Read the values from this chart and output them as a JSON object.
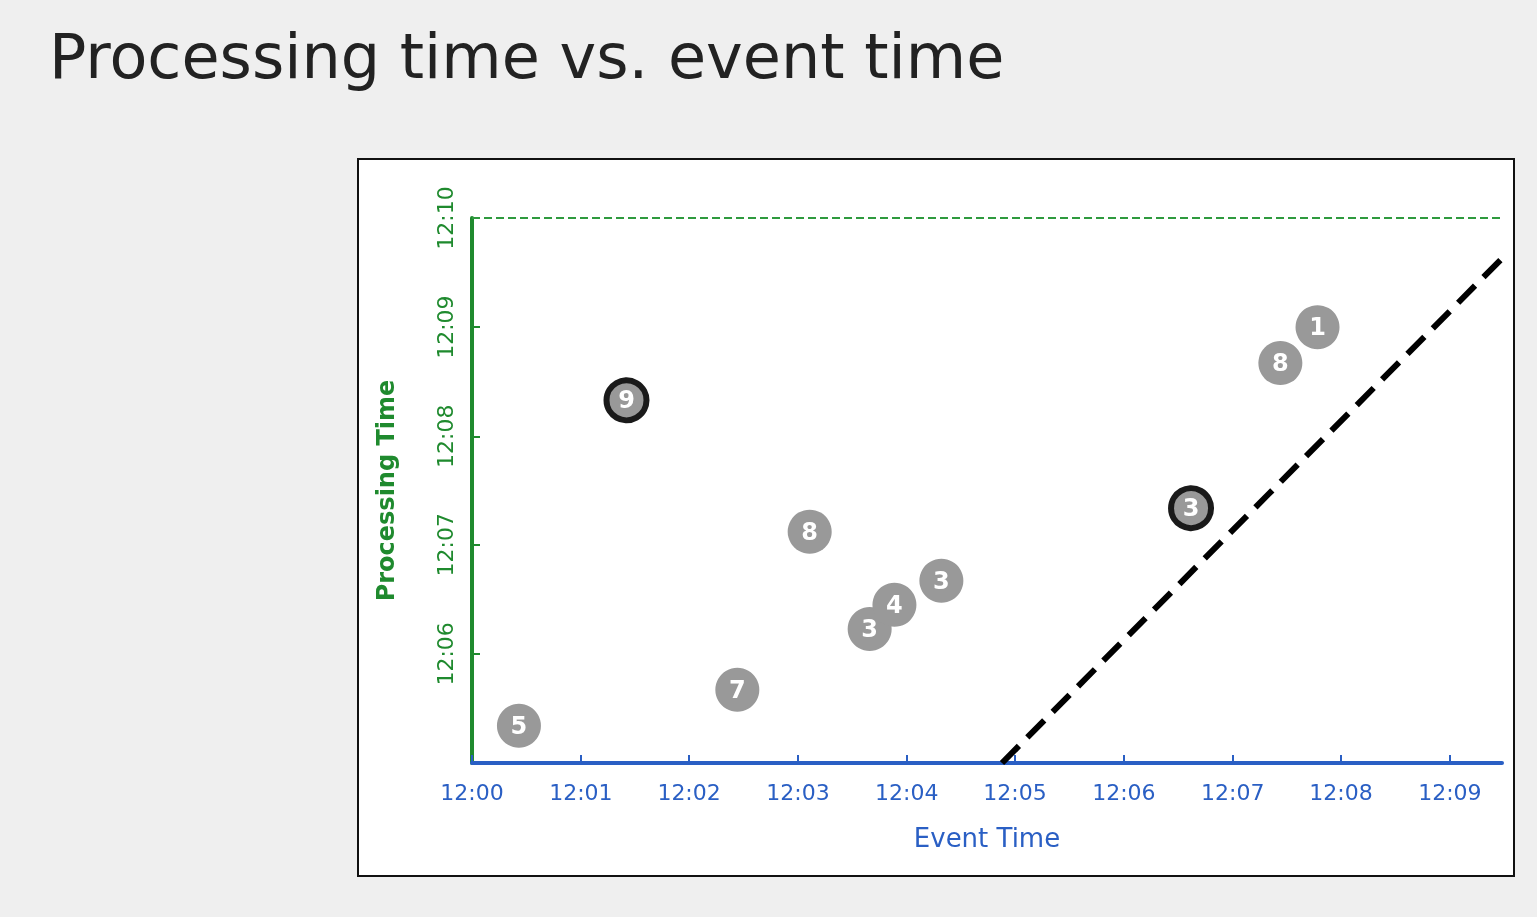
{
  "chart_data": {
    "type": "scatter",
    "title": "Processing time vs. event time",
    "xlabel": "Event Time",
    "ylabel": "Processing Time",
    "xlim": [
      12,
      12.158
    ],
    "ylim": [
      12.0833,
      12.1667
    ],
    "xticks": [
      {
        "value": 12,
        "label": "12:00"
      },
      {
        "value": 12.0167,
        "label": "12:01"
      },
      {
        "value": 12.0333,
        "label": "12:02"
      },
      {
        "value": 12.05,
        "label": "12:03"
      },
      {
        "value": 12.0667,
        "label": "12:04"
      },
      {
        "value": 12.0833,
        "label": "12:05"
      },
      {
        "value": 12.1,
        "label": "12:06"
      },
      {
        "value": 12.1167,
        "label": "12:07"
      },
      {
        "value": 12.1333,
        "label": "12:08"
      },
      {
        "value": 12.15,
        "label": "12:09"
      }
    ],
    "yticks": [
      {
        "value": 12.1,
        "label": "12:06"
      },
      {
        "value": 12.1167,
        "label": "12:07"
      },
      {
        "value": 12.1333,
        "label": "12:08"
      },
      {
        "value": 12.15,
        "label": "12:09"
      },
      {
        "value": 12.1667,
        "label": "12:10"
      }
    ],
    "marker": "circle",
    "series": [
      {
        "color": "#999999",
        "x": [
          12.0072,
          12.0407,
          12.0518,
          12.061,
          12.0648,
          12.072,
          12.124,
          12.1297
        ],
        "values": [
          12.089,
          12.0945,
          12.1187,
          12.1038,
          12.1075,
          12.1112,
          12.1445,
          12.15
        ]
      },
      {
        "color": "#1a1a1a",
        "x": [
          12.0237,
          12.1103
        ],
        "values": [
          12.1388,
          12.1223
        ]
      },
      {
        "type": "line",
        "color": "#000000",
        "line_style": "dashed",
        "marker": "none",
        "x": [
          12.0813,
          12.158
        ],
        "values": [
          12.0833,
          12.1605
        ]
      }
    ],
    "annotations": [
      {
        "text": "5",
        "x": 12.0072,
        "y": 12.089
      },
      {
        "text": "7",
        "x": 12.0407,
        "y": 12.0945
      },
      {
        "text": "8",
        "x": 12.0518,
        "y": 12.1187
      },
      {
        "text": "3",
        "x": 12.061,
        "y": 12.1038
      },
      {
        "text": "4",
        "x": 12.0648,
        "y": 12.1075
      },
      {
        "text": "3",
        "x": 12.072,
        "y": 12.1112
      },
      {
        "text": "8",
        "x": 12.124,
        "y": 12.1445
      },
      {
        "text": "1",
        "x": 12.1297,
        "y": 12.15
      },
      {
        "text": "9",
        "x": 12.0237,
        "y": 12.1388
      },
      {
        "text": "3",
        "x": 12.1103,
        "y": 12.1223
      }
    ],
    "ref_lines": [
      {
        "axis": "y",
        "value": 12.1667,
        "color": "#2e9a3e",
        "line_style": "dashed"
      }
    ]
  }
}
